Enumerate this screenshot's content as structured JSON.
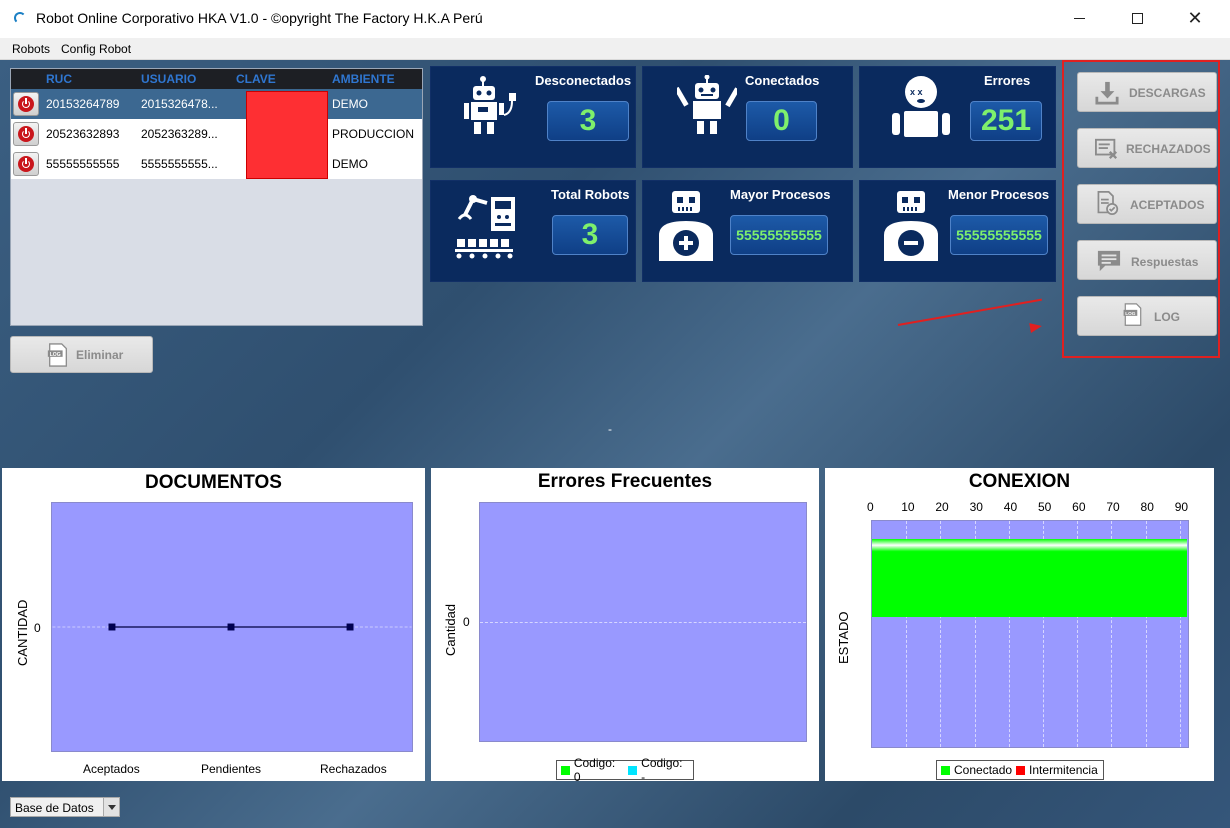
{
  "window": {
    "title": "Robot Online Corporativo HKA V1.0  - ©opyright The Factory H.K.A Perú"
  },
  "menu": [
    "Robots",
    "Config Robot"
  ],
  "table": {
    "headers": [
      "RUC",
      "USUARIO",
      "CLAVE",
      "AMBIENTE"
    ],
    "rows": [
      {
        "ruc": "20153264789",
        "usuario": "2015326478...",
        "clave": "",
        "ambiente": "DEMO"
      },
      {
        "ruc": "20523632893",
        "usuario": "2052363289...",
        "clave": "",
        "ambiente": "PRODUCCION"
      },
      {
        "ruc": "55555555555",
        "usuario": "5555555555...",
        "clave": "",
        "ambiente": "DEMO"
      }
    ]
  },
  "eliminar_label": "Eliminar",
  "stats": {
    "desconectados": {
      "label": "Desconectados",
      "value": "3"
    },
    "conectados": {
      "label": "Conectados",
      "value": "0"
    },
    "errores": {
      "label": "Errores",
      "value": "251"
    },
    "total_robots": {
      "label": "Total Robots",
      "value": "3"
    },
    "mayor_procesos": {
      "label": "Mayor Procesos",
      "value": "55555555555"
    },
    "menor_procesos": {
      "label": "Menor Procesos",
      "value": "55555555555"
    }
  },
  "actions": [
    "DESCARGAS",
    "RECHAZADOS",
    "ACEPTADOS",
    "Respuestas",
    "LOG"
  ],
  "dash": "-",
  "charts": {
    "documentos": {
      "title": "DOCUMENTOS",
      "ylabel": "CANTIDAD",
      "categories": [
        "Aceptados",
        "Pendientes",
        "Rechazados"
      ],
      "ytick": "0"
    },
    "errores": {
      "title": "Errores Frecuentes",
      "ylabel": "Cantidad",
      "ytick": "0",
      "legend": [
        "Codigo: 0",
        "Codigo: -"
      ]
    },
    "conexion": {
      "title": "CONEXION",
      "ylabel": "ESTADO",
      "xticks": [
        "0",
        "10",
        "20",
        "30",
        "40",
        "50",
        "60",
        "70",
        "80",
        "90"
      ],
      "legend": [
        "Conectado",
        "Intermitencia"
      ]
    }
  },
  "chart_data": [
    {
      "type": "line",
      "title": "DOCUMENTOS",
      "categories": [
        "Aceptados",
        "Pendientes",
        "Rechazados"
      ],
      "values": [
        0,
        0,
        0
      ],
      "ylabel": "CANTIDAD"
    },
    {
      "type": "bar",
      "title": "Errores Frecuentes",
      "ylabel": "Cantidad",
      "series": [
        {
          "name": "Codigo: 0",
          "values": []
        },
        {
          "name": "Codigo: -",
          "values": []
        }
      ]
    },
    {
      "type": "bar",
      "title": "CONEXION",
      "ylabel": "ESTADO",
      "xlim": [
        0,
        93
      ],
      "series": [
        {
          "name": "Conectado",
          "values": [
            92
          ]
        },
        {
          "name": "Intermitencia",
          "values": [
            0
          ]
        }
      ]
    }
  ],
  "colors": {
    "panel_bg": "#0a2a5e",
    "value_green": "#7ef06c",
    "plot_bg": "#9999ff",
    "conectado": "#00ff00",
    "intermitencia": "#ff0000",
    "codigo0": "#00ff00",
    "codigo_dash": "#00e5ff"
  },
  "footer": {
    "db_combo": "Base de Datos"
  }
}
